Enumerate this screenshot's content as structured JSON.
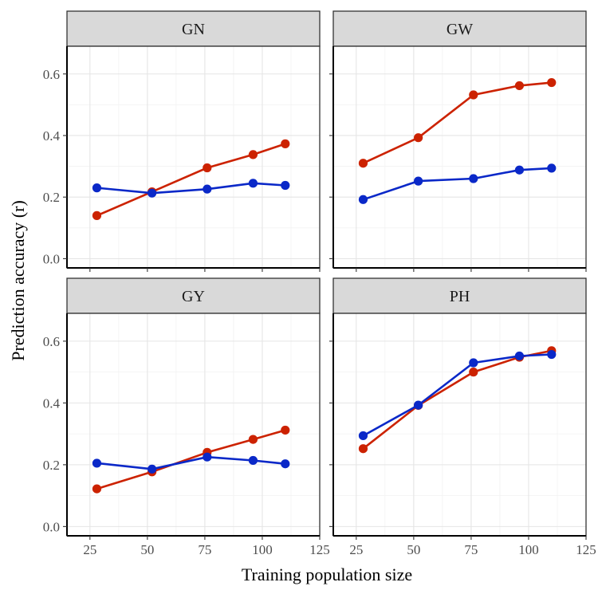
{
  "chart_data": {
    "type": "line",
    "xlabel": "Training population size",
    "ylabel": "Prediction accuracy (r)",
    "xlim": [
      15,
      125
    ],
    "ylim": [
      -0.03,
      0.69
    ],
    "x_ticks": [
      25,
      50,
      75,
      100,
      125
    ],
    "y_ticks": [
      0.0,
      0.2,
      0.4,
      0.6
    ],
    "y_tick_labels": [
      "0.0",
      "0.2",
      "0.4",
      "0.6"
    ],
    "grid": true,
    "series_colors": [
      "#cc2200",
      "#0a28c8"
    ],
    "panels": [
      {
        "title": "GN",
        "series": [
          {
            "color": "#cc2200",
            "x": [
              28,
              52,
              76,
              96,
              110
            ],
            "y": [
              0.14,
              0.217,
              0.295,
              0.338,
              0.373
            ]
          },
          {
            "color": "#0a28c8",
            "x": [
              28,
              52,
              76,
              96,
              110
            ],
            "y": [
              0.23,
              0.213,
              0.226,
              0.245,
              0.238
            ]
          }
        ]
      },
      {
        "title": "GW",
        "series": [
          {
            "color": "#cc2200",
            "x": [
              28,
              52,
              76,
              96,
              110
            ],
            "y": [
              0.31,
              0.393,
              0.532,
              0.562,
              0.572
            ]
          },
          {
            "color": "#0a28c8",
            "x": [
              28,
              52,
              76,
              96,
              110
            ],
            "y": [
              0.192,
              0.252,
              0.26,
              0.288,
              0.294
            ]
          }
        ]
      },
      {
        "title": "GY",
        "series": [
          {
            "color": "#cc2200",
            "x": [
              28,
              52,
              76,
              96,
              110
            ],
            "y": [
              0.122,
              0.177,
              0.24,
              0.282,
              0.312
            ]
          },
          {
            "color": "#0a28c8",
            "x": [
              28,
              52,
              76,
              96,
              110
            ],
            "y": [
              0.205,
              0.186,
              0.225,
              0.214,
              0.203
            ]
          }
        ]
      },
      {
        "title": "PH",
        "series": [
          {
            "color": "#cc2200",
            "x": [
              28,
              52,
              76,
              96,
              110
            ],
            "y": [
              0.252,
              0.392,
              0.5,
              0.548,
              0.569
            ]
          },
          {
            "color": "#0a28c8",
            "x": [
              28,
              52,
              76,
              96,
              110
            ],
            "y": [
              0.294,
              0.393,
              0.53,
              0.552,
              0.557
            ]
          }
        ]
      }
    ]
  }
}
